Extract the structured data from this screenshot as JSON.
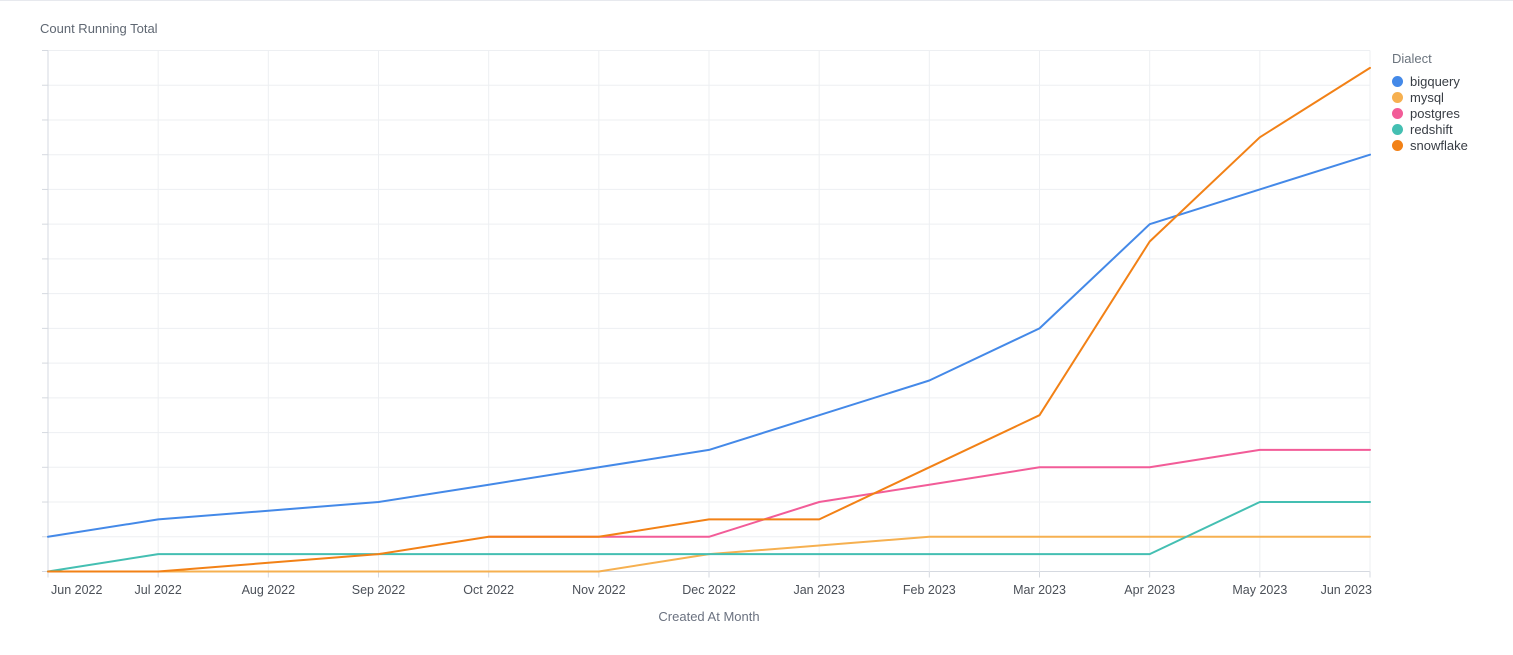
{
  "page": {
    "title": "Count Running Total"
  },
  "chart_data": {
    "type": "line",
    "title": "Count Running Total",
    "xlabel": "Created At Month",
    "ylabel": "",
    "ylim": [
      0,
      30
    ],
    "y_gridline_step": 2,
    "y_axis_labels_visible": false,
    "grid": true,
    "legend_position": "right",
    "legend_title": "Dialect",
    "categories": [
      "Jun 2022",
      "Jul 2022",
      "Aug 2022",
      "Sep 2022",
      "Oct 2022",
      "Nov 2022",
      "Dec 2022",
      "Jan 2023",
      "Feb 2023",
      "Mar 2023",
      "Apr 2023",
      "May 2023",
      "Jun 2023"
    ],
    "series": [
      {
        "name": "bigquery",
        "color": "#4489E8",
        "values": [
          2,
          3,
          3.5,
          4,
          5,
          6,
          7,
          9,
          11,
          14,
          20,
          22,
          24
        ]
      },
      {
        "name": "mysql",
        "color": "#F6B050",
        "values": [
          0,
          0,
          0,
          0,
          0,
          0,
          1,
          1.5,
          2,
          2,
          2,
          2,
          2
        ]
      },
      {
        "name": "postgres",
        "color": "#F25C98",
        "values": [
          null,
          null,
          null,
          null,
          2,
          2,
          2,
          4,
          5,
          6,
          6,
          7,
          7
        ]
      },
      {
        "name": "redshift",
        "color": "#44BFB2",
        "values": [
          0,
          1,
          1,
          1,
          1,
          1,
          1,
          1,
          1,
          1,
          1,
          4,
          4
        ]
      },
      {
        "name": "snowflake",
        "color": "#F28116",
        "values": [
          0,
          0,
          0.5,
          1,
          2,
          2,
          3,
          3,
          6,
          9,
          19,
          25,
          29
        ]
      }
    ]
  },
  "style": {
    "grid_color": "#edeff2",
    "axis_color": "#d5d9e0",
    "tick_label_color": "#4b5058",
    "axis_title_color": "#6b7280"
  }
}
